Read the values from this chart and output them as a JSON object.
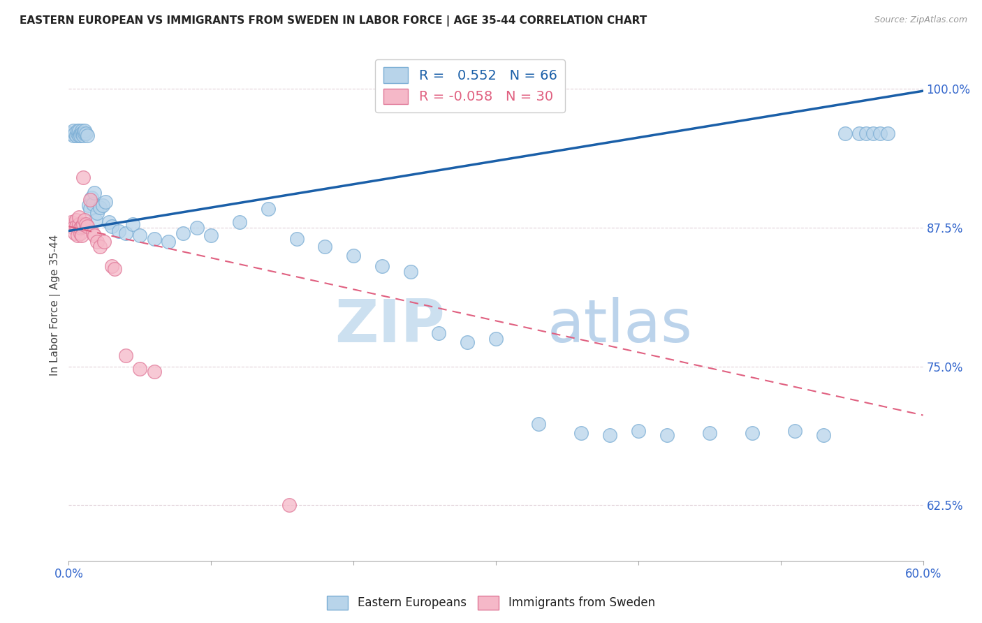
{
  "title": "EASTERN EUROPEAN VS IMMIGRANTS FROM SWEDEN IN LABOR FORCE | AGE 35-44 CORRELATION CHART",
  "source": "Source: ZipAtlas.com",
  "ylabel": "In Labor Force | Age 35-44",
  "yaxis_labels": [
    "100.0%",
    "87.5%",
    "75.0%",
    "62.5%"
  ],
  "yaxis_values": [
    1.0,
    0.875,
    0.75,
    0.625
  ],
  "xaxis_min": 0.0,
  "xaxis_max": 0.6,
  "yaxis_min": 0.575,
  "yaxis_max": 1.035,
  "legend_labels": [
    "Eastern Europeans",
    "Immigrants from Sweden"
  ],
  "r_blue": 0.552,
  "n_blue": 66,
  "r_pink": -0.058,
  "n_pink": 30,
  "blue_color": "#b8d4ea",
  "pink_color": "#f5b8c8",
  "blue_edge": "#7aadd4",
  "pink_edge": "#e07898",
  "trendline_blue": "#1a5fa8",
  "trendline_pink": "#e06080",
  "watermark_zip": "ZIP",
  "watermark_atlas": "atlas",
  "blue_scatter_x": [
    0.001,
    0.002,
    0.003,
    0.003,
    0.004,
    0.005,
    0.006,
    0.006,
    0.007,
    0.007,
    0.008,
    0.008,
    0.009,
    0.009,
    0.01,
    0.01,
    0.011,
    0.011,
    0.012,
    0.013,
    0.014,
    0.015,
    0.016,
    0.017,
    0.018,
    0.019,
    0.02,
    0.022,
    0.024,
    0.026,
    0.028,
    0.03,
    0.035,
    0.04,
    0.045,
    0.05,
    0.06,
    0.07,
    0.08,
    0.09,
    0.1,
    0.12,
    0.14,
    0.16,
    0.18,
    0.2,
    0.22,
    0.24,
    0.26,
    0.28,
    0.3,
    0.33,
    0.36,
    0.38,
    0.4,
    0.42,
    0.45,
    0.48,
    0.51,
    0.53,
    0.545,
    0.555,
    0.56,
    0.565,
    0.57,
    0.575
  ],
  "blue_scatter_y": [
    0.96,
    0.96,
    0.958,
    0.962,
    0.96,
    0.958,
    0.96,
    0.962,
    0.958,
    0.962,
    0.96,
    0.958,
    0.962,
    0.96,
    0.96,
    0.958,
    0.96,
    0.962,
    0.96,
    0.958,
    0.895,
    0.892,
    0.902,
    0.896,
    0.906,
    0.882,
    0.888,
    0.893,
    0.895,
    0.898,
    0.88,
    0.876,
    0.872,
    0.87,
    0.878,
    0.868,
    0.865,
    0.862,
    0.87,
    0.875,
    0.868,
    0.88,
    0.892,
    0.865,
    0.858,
    0.85,
    0.84,
    0.835,
    0.78,
    0.772,
    0.775,
    0.698,
    0.69,
    0.688,
    0.692,
    0.688,
    0.69,
    0.69,
    0.692,
    0.688,
    0.96,
    0.96,
    0.96,
    0.96,
    0.96,
    0.96
  ],
  "pink_scatter_x": [
    0.001,
    0.002,
    0.003,
    0.004,
    0.005,
    0.005,
    0.006,
    0.007,
    0.007,
    0.008,
    0.008,
    0.009,
    0.009,
    0.01,
    0.01,
    0.011,
    0.012,
    0.013,
    0.015,
    0.017,
    0.018,
    0.02,
    0.022,
    0.025,
    0.03,
    0.032,
    0.04,
    0.05,
    0.06,
    0.155
  ],
  "pink_scatter_y": [
    0.878,
    0.88,
    0.875,
    0.87,
    0.882,
    0.876,
    0.868,
    0.878,
    0.884,
    0.87,
    0.875,
    0.876,
    0.868,
    0.92,
    0.878,
    0.882,
    0.878,
    0.876,
    0.9,
    0.87,
    0.868,
    0.862,
    0.858,
    0.862,
    0.84,
    0.838,
    0.76,
    0.748,
    0.745,
    0.625
  ],
  "blue_trendline_x0": 0.0,
  "blue_trendline_y0": 0.872,
  "blue_trendline_x1": 0.6,
  "blue_trendline_y1": 0.998,
  "pink_trendline_x0": 0.0,
  "pink_trendline_y0": 0.876,
  "pink_trendline_x1": 0.6,
  "pink_trendline_y1": 0.706,
  "xtick_positions": [
    0.0,
    0.1,
    0.2,
    0.3,
    0.4,
    0.5,
    0.6
  ],
  "xtick_labels_show": [
    "0.0%",
    "",
    "",
    "",
    "",
    "",
    "60.0%"
  ]
}
